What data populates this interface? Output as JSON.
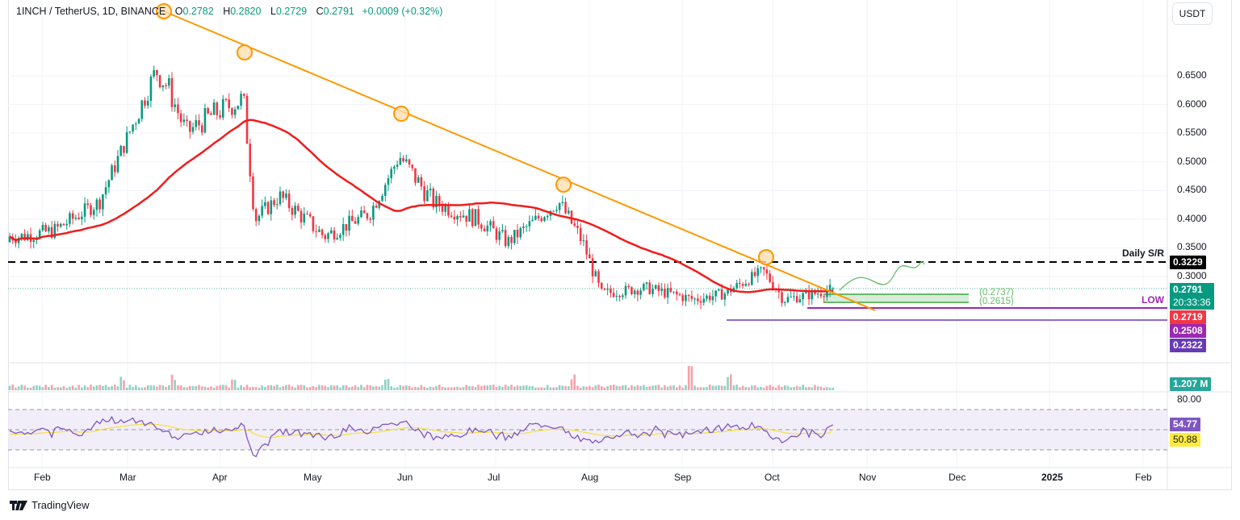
{
  "header": {
    "symbol": "1INCH / TetherUS, 1D, BINANCE",
    "open_label": "O",
    "open": "0.2782",
    "high_label": "H",
    "high": "0.2820",
    "low_label": "L",
    "low": "0.2729",
    "close_label": "C",
    "close": "0.2791",
    "change": "+0.0009 (+0.32%)",
    "currency_button": "USDT"
  },
  "colors": {
    "up": "#089981",
    "down": "#f23645",
    "ma": "#f21b1b",
    "trendline": "#ff9800",
    "rsi": "#7e57c2",
    "rsi_ma": "#f5e04a",
    "support_purple": "#9c27b0",
    "low_line": "#673ab7",
    "zone": "#4caf50"
  },
  "y_axis": {
    "ticks": [
      "0.6500",
      "0.6000",
      "0.5500",
      "0.5000",
      "0.4500",
      "0.4000",
      "0.3500",
      "0.3000"
    ],
    "tags": {
      "daily_sr": {
        "value": "0.3229",
        "bg": "#000000"
      },
      "last_price": {
        "value": "0.2791",
        "countdown": "20:33:36",
        "bg": "#089981"
      },
      "ma": {
        "value": "0.2719",
        "bg": "#f23645"
      },
      "low1": {
        "value": "0.2508",
        "bg": "#9c27b0"
      },
      "low2": {
        "value": "0.2322",
        "bg": "#673ab7"
      },
      "volume": {
        "value": "1.207 M",
        "bg": "#26a69a"
      },
      "rsi": {
        "value": "54.77",
        "bg": "#7e57c2"
      },
      "rsi_ma": {
        "value": "50.88",
        "bg": "#ffeb3b"
      }
    },
    "rsi_tick": "80.00"
  },
  "x_axis": {
    "ticks": [
      "Feb",
      "Mar",
      "Apr",
      "May",
      "Jun",
      "Jul",
      "Aug",
      "Sep",
      "Oct",
      "Nov",
      "Dec",
      "2025",
      "Feb"
    ]
  },
  "annotations": {
    "daily_sr_label": "Daily S/R",
    "low_label": "LOW",
    "zone_upper": "(0.2737)",
    "zone_lower": "(0.2615)"
  },
  "footer": {
    "brand": "TradingView"
  },
  "chart_data": {
    "type": "candlestick",
    "title": "1INCH / TetherUS, 1D, BINANCE",
    "xlabel": "",
    "ylabel": "USDT",
    "ylim": [
      0.2,
      0.69
    ],
    "x_ticks": [
      "Feb",
      "Mar",
      "Apr",
      "May",
      "Jun",
      "Jul",
      "Aug",
      "Sep",
      "Oct",
      "Nov",
      "Dec",
      "2025",
      "Feb"
    ],
    "close_path": {
      "dates": [
        "2024-01-25",
        "2024-02-05",
        "2024-02-20",
        "2024-03-01",
        "2024-03-10",
        "2024-03-14",
        "2024-03-20",
        "2024-03-28",
        "2024-04-08",
        "2024-04-12",
        "2024-04-20",
        "2024-05-05",
        "2024-05-20",
        "2024-05-30",
        "2024-06-10",
        "2024-06-25",
        "2024-07-05",
        "2024-07-22",
        "2024-07-30",
        "2024-08-05",
        "2024-08-20",
        "2024-09-05",
        "2024-09-15",
        "2024-09-28",
        "2024-10-05",
        "2024-10-15",
        "2024-10-22"
      ],
      "closes": [
        0.37,
        0.38,
        0.43,
        0.55,
        0.66,
        0.63,
        0.55,
        0.58,
        0.61,
        0.4,
        0.44,
        0.37,
        0.41,
        0.51,
        0.43,
        0.4,
        0.36,
        0.43,
        0.36,
        0.27,
        0.28,
        0.26,
        0.27,
        0.31,
        0.26,
        0.27,
        0.2791
      ]
    },
    "series": [
      {
        "name": "MA (red)",
        "last": 0.2719
      },
      {
        "name": "RSI",
        "last": 54.77
      },
      {
        "name": "RSI MA",
        "last": 50.88
      },
      {
        "name": "Volume",
        "last": "1.207M"
      }
    ],
    "levels": {
      "daily_sr": 0.3229,
      "zone_top": 0.2737,
      "zone_bottom": 0.2615,
      "low_1": 0.2508,
      "low_2": 0.2322
    },
    "trendline": {
      "from": [
        "2024-03-14",
        0.69
      ],
      "to": [
        "2024-10-22",
        0.276
      ],
      "touches": 5
    },
    "rsi_bands": [
      30,
      50,
      70
    ]
  }
}
